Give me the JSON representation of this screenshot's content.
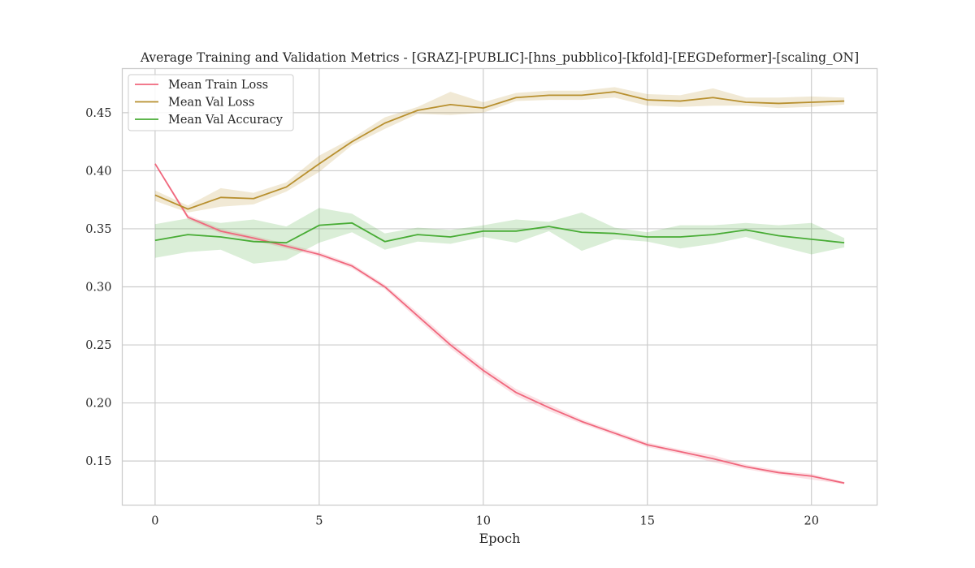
{
  "chart_data": {
    "type": "line",
    "title": "Average Training and Validation Metrics - [GRAZ]-[PUBLIC]-[hns_pubblico]-[kfold]-[EEGDeformer]-[scaling_ON]",
    "xlabel": "Epoch",
    "ylabel": "",
    "xlim": [
      -1,
      22
    ],
    "ylim": [
      0.112,
      0.488
    ],
    "xticks": [
      0,
      5,
      10,
      15,
      20
    ],
    "yticks": [
      0.15,
      0.2,
      0.25,
      0.3,
      0.35,
      0.4,
      0.45
    ],
    "ytick_labels": [
      "0.15",
      "0.20",
      "0.25",
      "0.30",
      "0.35",
      "0.40",
      "0.45"
    ],
    "grid": true,
    "legend_position": "top-left",
    "x": [
      0,
      1,
      2,
      3,
      4,
      5,
      6,
      7,
      8,
      9,
      10,
      11,
      12,
      13,
      14,
      15,
      16,
      17,
      18,
      19,
      20,
      21
    ],
    "series": [
      {
        "name": "Mean Train Loss",
        "color": "#f0677d",
        "values": [
          0.406,
          0.36,
          0.348,
          0.342,
          0.335,
          0.328,
          0.318,
          0.3,
          0.275,
          0.25,
          0.228,
          0.209,
          0.196,
          0.184,
          0.174,
          0.164,
          0.158,
          0.152,
          0.145,
          0.14,
          0.137,
          0.131
        ],
        "lower": [
          0.405,
          0.358,
          0.346,
          0.34,
          0.333,
          0.326,
          0.316,
          0.298,
          0.272,
          0.247,
          0.225,
          0.206,
          0.193,
          0.182,
          0.172,
          0.162,
          0.156,
          0.149,
          0.143,
          0.138,
          0.134,
          0.13
        ],
        "upper": [
          0.407,
          0.362,
          0.35,
          0.344,
          0.337,
          0.33,
          0.32,
          0.302,
          0.278,
          0.253,
          0.231,
          0.212,
          0.199,
          0.186,
          0.176,
          0.166,
          0.16,
          0.155,
          0.147,
          0.142,
          0.139,
          0.132
        ]
      },
      {
        "name": "Mean Val Loss",
        "color": "#b8902f",
        "values": [
          0.379,
          0.367,
          0.377,
          0.376,
          0.386,
          0.406,
          0.425,
          0.441,
          0.452,
          0.457,
          0.454,
          0.463,
          0.465,
          0.465,
          0.468,
          0.461,
          0.46,
          0.463,
          0.459,
          0.458,
          0.459,
          0.46
        ],
        "lower": [
          0.374,
          0.364,
          0.369,
          0.371,
          0.382,
          0.399,
          0.422,
          0.436,
          0.449,
          0.448,
          0.45,
          0.46,
          0.461,
          0.461,
          0.463,
          0.456,
          0.455,
          0.456,
          0.456,
          0.454,
          0.455,
          0.457
        ],
        "upper": [
          0.383,
          0.37,
          0.385,
          0.381,
          0.39,
          0.413,
          0.428,
          0.446,
          0.455,
          0.468,
          0.459,
          0.467,
          0.469,
          0.469,
          0.472,
          0.466,
          0.465,
          0.471,
          0.463,
          0.463,
          0.464,
          0.463
        ]
      },
      {
        "name": "Mean Val Accuracy",
        "color": "#48ac35",
        "values": [
          0.34,
          0.345,
          0.343,
          0.339,
          0.338,
          0.353,
          0.355,
          0.339,
          0.345,
          0.343,
          0.348,
          0.348,
          0.352,
          0.347,
          0.346,
          0.343,
          0.343,
          0.345,
          0.349,
          0.344,
          0.341,
          0.338
        ],
        "lower": [
          0.325,
          0.33,
          0.332,
          0.32,
          0.323,
          0.338,
          0.347,
          0.332,
          0.339,
          0.337,
          0.343,
          0.338,
          0.348,
          0.331,
          0.341,
          0.339,
          0.333,
          0.337,
          0.343,
          0.335,
          0.328,
          0.334
        ],
        "upper": [
          0.354,
          0.359,
          0.355,
          0.358,
          0.352,
          0.368,
          0.363,
          0.346,
          0.351,
          0.349,
          0.353,
          0.358,
          0.356,
          0.364,
          0.351,
          0.347,
          0.353,
          0.353,
          0.355,
          0.353,
          0.355,
          0.342
        ]
      }
    ]
  }
}
